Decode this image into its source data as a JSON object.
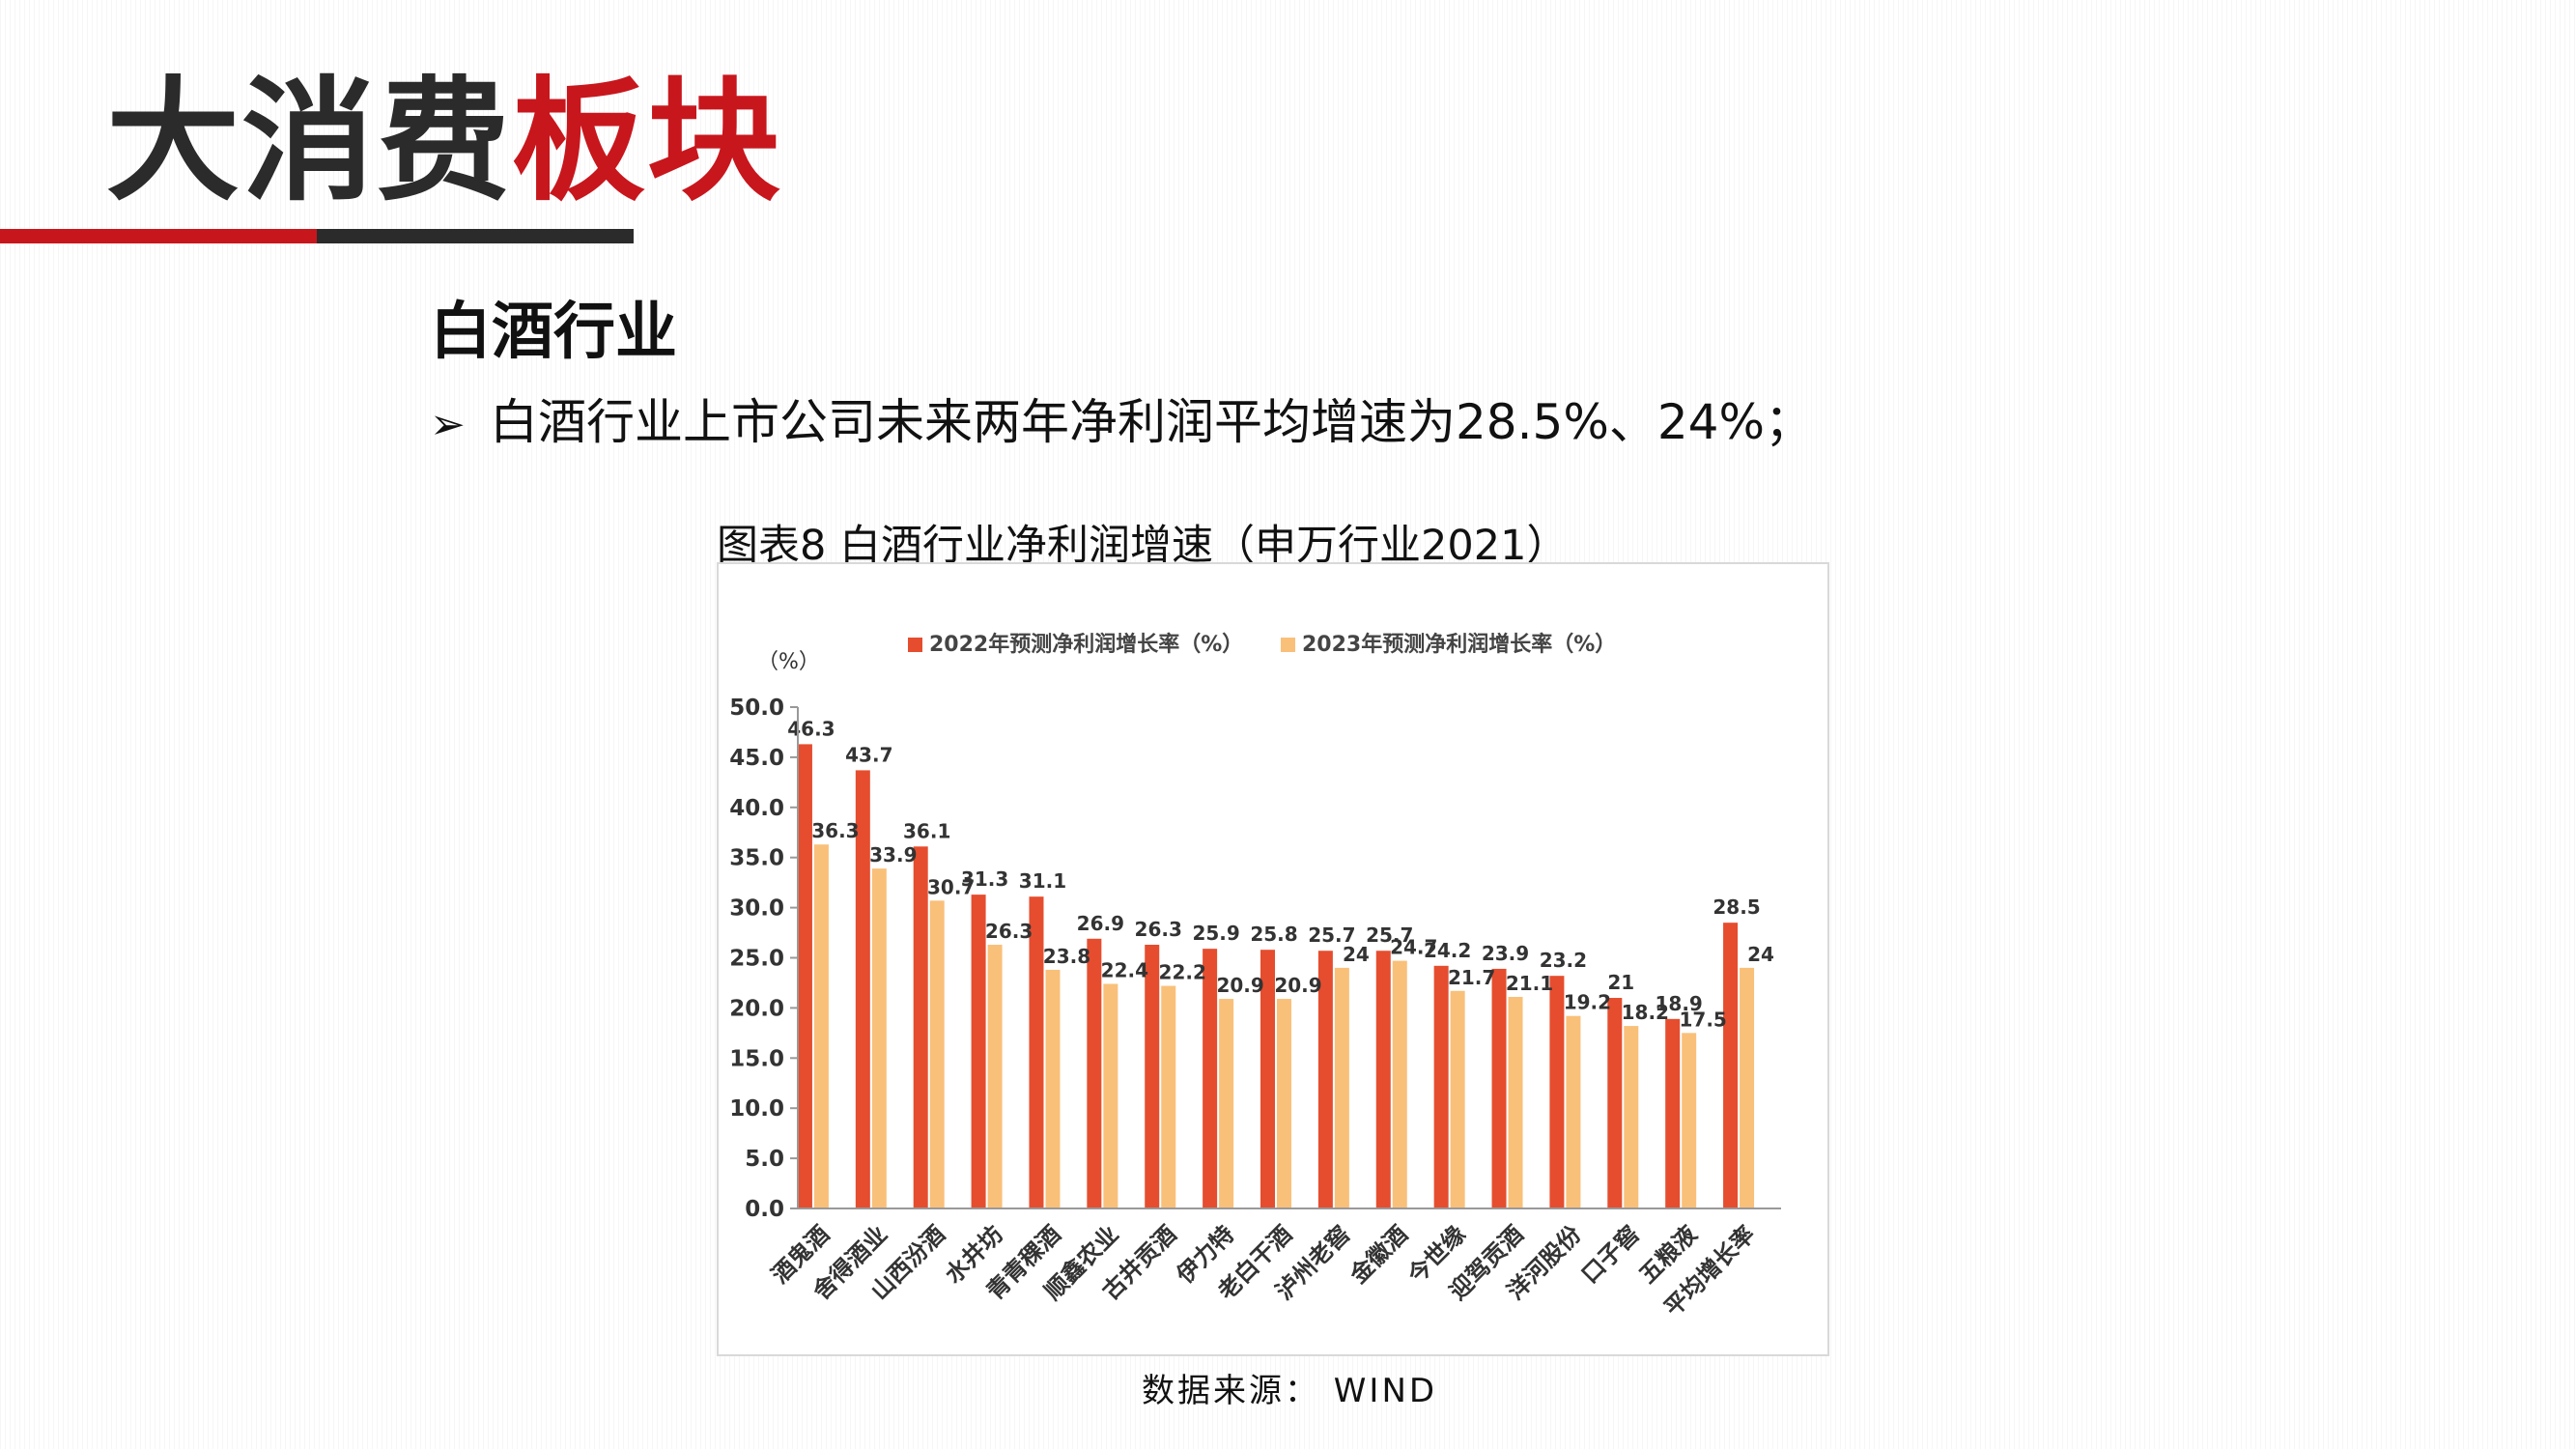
{
  "page": {
    "title_dark": "大消费",
    "title_red": "板块",
    "section_heading": "白酒行业",
    "bullet_marker": "➢",
    "bullet_text": "白酒行业上市公司未来两年净利润平均增速为28.5%、24%；",
    "chart_caption": "图表8 白酒行业净利润增速（申万行业2021）",
    "source": "数据来源： WIND"
  },
  "colors": {
    "title_red": "#c8161d",
    "title_dark": "#2b2b2b",
    "series_2022": "#e54d2e",
    "series_2023": "#f9c07a"
  },
  "chart_data": {
    "type": "bar",
    "unit_label": "（%）",
    "ylim": [
      0,
      50
    ],
    "ytick_step": 5,
    "ytick_labels": [
      "0.0",
      "5.0",
      "10.0",
      "15.0",
      "20.0",
      "25.0",
      "30.0",
      "35.0",
      "40.0",
      "45.0",
      "50.0"
    ],
    "legend_position": "top",
    "grid": false,
    "categories": [
      "酒鬼酒",
      "舍得酒业",
      "山西汾酒",
      "水井坊",
      "青青稞酒",
      "顺鑫农业",
      "古井贡酒",
      "伊力特",
      "老白干酒",
      "泸州老窖",
      "金徽酒",
      "今世缘",
      "迎驾贡酒",
      "洋河股份",
      "口子窖",
      "五粮液",
      "平均增长率"
    ],
    "series": [
      {
        "name": "2022年预测净利润增长率（%）",
        "values": [
          46.3,
          43.7,
          36.1,
          31.3,
          31.1,
          26.9,
          26.3,
          25.9,
          25.8,
          25.7,
          25.7,
          24.2,
          23.9,
          23.2,
          21,
          18.9,
          28.5
        ],
        "labels": [
          "46.3",
          "43.7",
          "36.1",
          "31.3",
          "31.1",
          "26.9",
          "26.3",
          "25.9",
          "25.8",
          "25.7",
          "25.7",
          "24.2",
          "23.9",
          "23.2",
          "21",
          "18.9",
          "28.5"
        ]
      },
      {
        "name": "2023年预测净利润增长率（%）",
        "values": [
          36.3,
          33.9,
          30.7,
          26.3,
          23.8,
          22.4,
          22.2,
          20.9,
          20.9,
          24,
          24.7,
          21.7,
          21.1,
          19.2,
          18.2,
          17.5,
          24
        ],
        "labels": [
          "36.3",
          "33.9",
          "30.7",
          "26.3",
          "23.8",
          "22.4",
          "22.2",
          "20.9",
          "20.9",
          "24",
          "24.7",
          "21.7",
          "21.1",
          "19.2",
          "18.2",
          "17.5",
          "24"
        ]
      }
    ]
  }
}
